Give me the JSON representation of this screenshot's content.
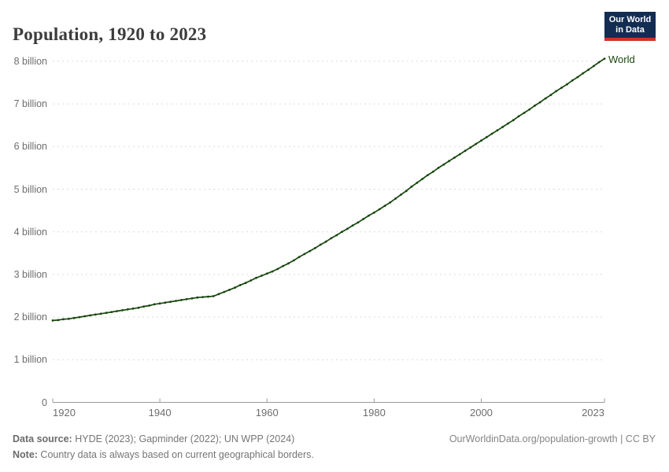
{
  "header": {
    "title": "Population, 1920 to 2023",
    "logo": {
      "line1": "Our World",
      "line2": "in Data",
      "bg_color": "#132d52",
      "accent_color": "#cf322c"
    }
  },
  "chart_data": {
    "type": "line",
    "title": "Population, 1920 to 2023",
    "xlabel": "",
    "ylabel": "",
    "xlim": [
      1920,
      2023
    ],
    "ylim": [
      0,
      8.3
    ],
    "grid": "horizontal-dashed",
    "grid_color": "#dcdcdc",
    "axis_color": "#9a9a9a",
    "legend_position": "end-of-line",
    "x_ticks": [
      {
        "label": "1920",
        "year": 1920
      },
      {
        "label": "1940",
        "year": 1940
      },
      {
        "label": "1960",
        "year": 1960
      },
      {
        "label": "1980",
        "year": 1980
      },
      {
        "label": "2000",
        "year": 2000
      },
      {
        "label": "2023",
        "year": 2023
      }
    ],
    "y_ticks": [
      {
        "label": "8 billion",
        "value": 8
      },
      {
        "label": "7 billion",
        "value": 7
      },
      {
        "label": "6 billion",
        "value": 6
      },
      {
        "label": "5 billion",
        "value": 5
      },
      {
        "label": "4 billion",
        "value": 4
      },
      {
        "label": "3 billion",
        "value": 3
      },
      {
        "label": "2 billion",
        "value": 2
      },
      {
        "label": "1 billion",
        "value": 1
      },
      {
        "label": "0",
        "value": 0
      }
    ],
    "unit": "billion people",
    "series": [
      {
        "name": "World",
        "color": "#18470f",
        "years": [
          1920,
          1921,
          1922,
          1923,
          1924,
          1925,
          1926,
          1927,
          1928,
          1929,
          1930,
          1931,
          1932,
          1933,
          1934,
          1935,
          1936,
          1937,
          1938,
          1939,
          1940,
          1941,
          1942,
          1943,
          1944,
          1945,
          1946,
          1947,
          1948,
          1949,
          1950,
          1951,
          1952,
          1953,
          1954,
          1955,
          1956,
          1957,
          1958,
          1959,
          1960,
          1961,
          1962,
          1963,
          1964,
          1965,
          1966,
          1967,
          1968,
          1969,
          1970,
          1971,
          1972,
          1973,
          1974,
          1975,
          1976,
          1977,
          1978,
          1979,
          1980,
          1981,
          1982,
          1983,
          1984,
          1985,
          1986,
          1987,
          1988,
          1989,
          1990,
          1991,
          1992,
          1993,
          1994,
          1995,
          1996,
          1997,
          1998,
          1999,
          2000,
          2001,
          2002,
          2003,
          2004,
          2005,
          2006,
          2007,
          2008,
          2009,
          2010,
          2011,
          2012,
          2013,
          2014,
          2015,
          2016,
          2017,
          2018,
          2019,
          2020,
          2021,
          2022,
          2023
        ],
        "values": [
          1.92,
          1.93,
          1.95,
          1.96,
          1.98,
          2.0,
          2.02,
          2.04,
          2.06,
          2.08,
          2.1,
          2.12,
          2.14,
          2.16,
          2.18,
          2.2,
          2.22,
          2.25,
          2.27,
          2.3,
          2.32,
          2.34,
          2.36,
          2.38,
          2.4,
          2.42,
          2.44,
          2.46,
          2.47,
          2.48,
          2.49,
          2.54,
          2.59,
          2.64,
          2.69,
          2.75,
          2.8,
          2.86,
          2.92,
          2.97,
          3.02,
          3.07,
          3.13,
          3.2,
          3.26,
          3.33,
          3.41,
          3.48,
          3.55,
          3.62,
          3.7,
          3.77,
          3.85,
          3.92,
          4.0,
          4.07,
          4.15,
          4.22,
          4.3,
          4.38,
          4.45,
          4.53,
          4.61,
          4.69,
          4.78,
          4.87,
          4.96,
          5.06,
          5.15,
          5.24,
          5.33,
          5.41,
          5.5,
          5.58,
          5.66,
          5.74,
          5.82,
          5.9,
          5.98,
          6.06,
          6.14,
          6.22,
          6.3,
          6.38,
          6.46,
          6.54,
          6.62,
          6.71,
          6.79,
          6.87,
          6.96,
          7.04,
          7.13,
          7.21,
          7.3,
          7.38,
          7.46,
          7.55,
          7.63,
          7.72,
          7.8,
          7.89,
          7.98,
          8.06
        ]
      }
    ]
  },
  "footer": {
    "source_label": "Data source:",
    "source_text": " HYDE (2023); Gapminder (2022); UN WPP (2024)",
    "note_label": "Note:",
    "note_text": " Country data is always based on current geographical borders.",
    "right_text": "OurWorldinData.org/population-growth | CC BY"
  }
}
